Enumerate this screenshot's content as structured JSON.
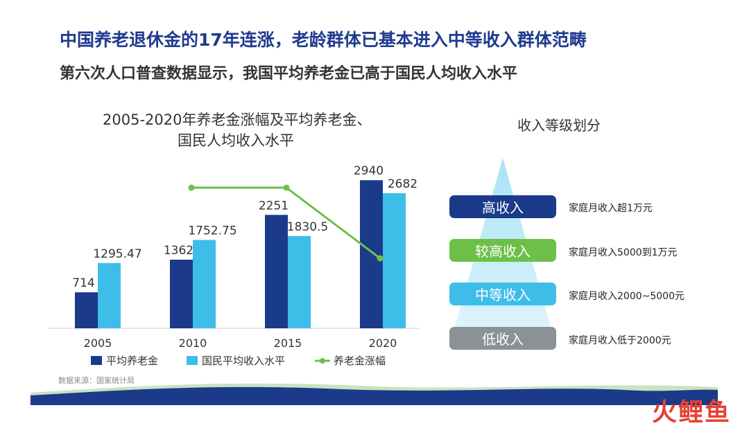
{
  "headline": "中国养老退休金的17年连涨，老龄群体已基本进入中等收入群体范畴",
  "subheadline": "第六次人口普查数据显示，我国平均养老金已高于国民人均收入水平",
  "source": "数据来源：国家统计局",
  "chart_data": {
    "type": "bar",
    "title_line1": "2005-2020年养老金涨幅及平均养老金、",
    "title_line2": "国民人均收入水平",
    "categories": [
      "2005",
      "2010",
      "2015",
      "2020"
    ],
    "series": [
      {
        "name": "平均养老金",
        "type": "bar",
        "color": "#1b3a8a",
        "values": [
          714,
          1362,
          2251,
          2940
        ],
        "labels": [
          "714",
          "1362",
          "2251",
          "2940"
        ]
      },
      {
        "name": "国民平均收入水平",
        "type": "bar",
        "color": "#3ebde9",
        "values": [
          1295.47,
          1752.75,
          1830.5,
          2682
        ],
        "labels": [
          "1295.47",
          "1752.75",
          "1830.5",
          "2682"
        ]
      },
      {
        "name": "养老金涨幅",
        "type": "line",
        "color": "#6cc04a",
        "points": [
          {
            "x": "2010",
            "y": 10
          },
          {
            "x": "2015",
            "y": 10
          },
          {
            "x": "2020",
            "y": 5
          }
        ]
      }
    ],
    "ylim": [
      0,
      3300
    ],
    "grid": false,
    "legend": "bottom"
  },
  "income_levels": {
    "title": "收入等级划分",
    "levels": [
      {
        "label": "高收入",
        "desc": "家庭月收入超1万元",
        "color": "#1b3a8a"
      },
      {
        "label": "较高收入",
        "desc": "家庭月收入5000到1万元",
        "color": "#6cc04a"
      },
      {
        "label": "中等收入",
        "desc": "家庭月收入2000~5000元",
        "color": "#3ebde9"
      },
      {
        "label": "低收入",
        "desc": "家庭月收入低于2000元",
        "color": "#8c9197"
      }
    ]
  },
  "watermark": "火鲤鱼"
}
